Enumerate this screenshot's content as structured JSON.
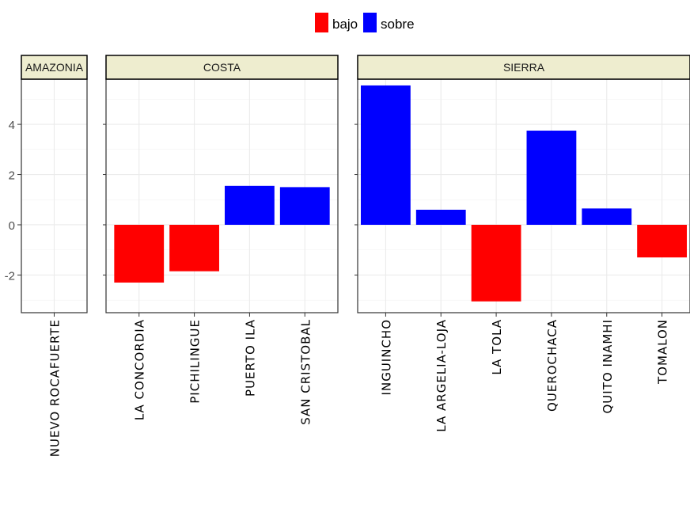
{
  "chart_data": {
    "type": "bar",
    "facet_variable": "region",
    "legend": {
      "position": "top",
      "entries": [
        {
          "name": "bajo",
          "color": "#FF0000"
        },
        {
          "name": "sobre",
          "color": "#0000FF"
        }
      ]
    },
    "ylim": [
      -3.5,
      5.8
    ],
    "yticks": [
      -2,
      0,
      2,
      4
    ],
    "grid": true,
    "panels": [
      {
        "strip": "AMAZONIA",
        "categories": [
          "NUEVO ROCAFUERTE"
        ],
        "values": [
          null
        ],
        "groups": [
          null
        ]
      },
      {
        "strip": "COSTA",
        "categories": [
          "LA CONCORDIA",
          "PICHILINGUE",
          "PUERTO ILA",
          "SAN CRISTOBAL"
        ],
        "values": [
          -2.3,
          -1.85,
          1.55,
          1.5
        ],
        "groups": [
          "bajo",
          "bajo",
          "sobre",
          "sobre"
        ]
      },
      {
        "strip": "SIERRA",
        "categories": [
          "INGUINCHO",
          "LA ARGELIA-LOJA",
          "LA TOLA",
          "QUEROCHACA",
          "QUITO INAMHI",
          "TOMALON"
        ],
        "values": [
          5.55,
          0.6,
          -3.05,
          3.75,
          0.65,
          -1.3
        ],
        "groups": [
          "sobre",
          "sobre",
          "bajo",
          "sobre",
          "sobre",
          "bajo"
        ]
      }
    ]
  }
}
